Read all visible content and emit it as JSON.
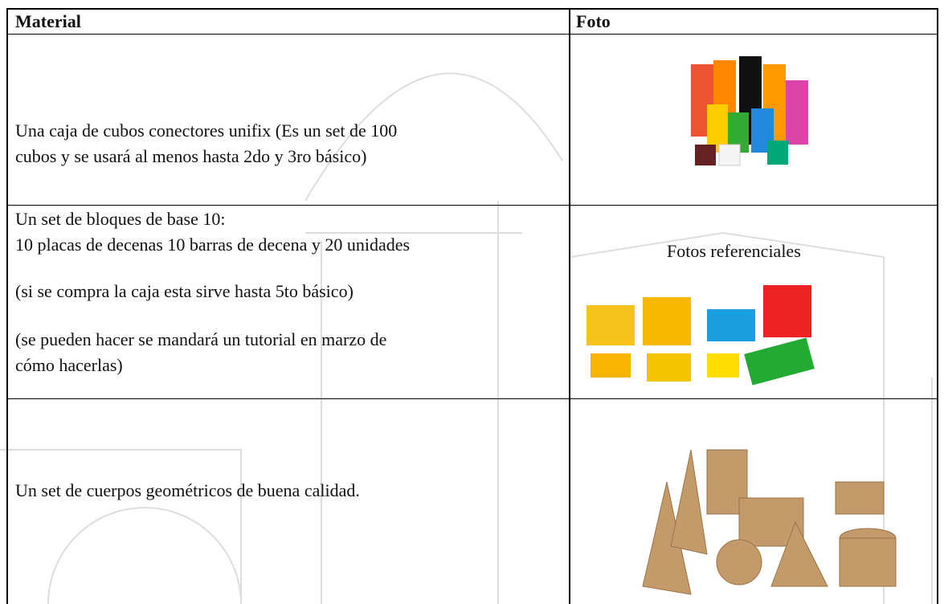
{
  "table": {
    "header": [
      "Material",
      "Foto"
    ],
    "rows": [
      {
        "material": [
          [
            "Una caja de cubos conectores unifix (Es un set de 100",
            "cubos y se usará al menos hasta 2do y 3ro básico)"
          ]
        ]
      },
      {
        "material": [
          [
            "Un set de bloques de base 10:",
            "10 placas de decenas 10 barras de decena y 20 unidades"
          ],
          [
            "(si se compra la caja esta sirve hasta 5to básico)"
          ],
          [
            "(se pueden hacer se mandará un tutorial en marzo de",
            "cómo hacerlas)"
          ]
        ],
        "foto_caption": "Fotos referenciales"
      },
      {
        "material": [
          [
            "Un set de cuerpos geométricos de buena calidad."
          ]
        ]
      }
    ]
  }
}
